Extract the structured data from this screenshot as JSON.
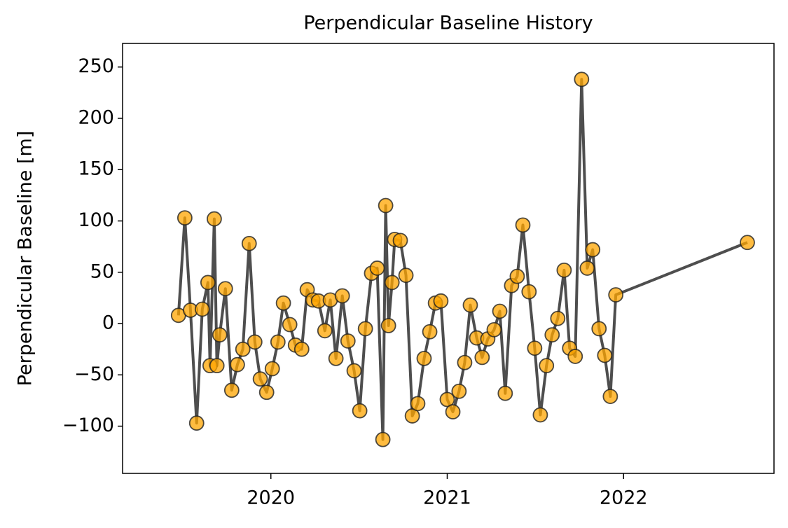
{
  "chart_data": {
    "type": "line",
    "title": "Perpendicular Baseline History",
    "ylabel": "Perpendicular Baseline [m]",
    "x": [
      2019.476,
      2019.512,
      2019.544,
      2019.579,
      2019.611,
      2019.643,
      2019.655,
      2019.679,
      2019.694,
      2019.71,
      2019.742,
      2019.778,
      2019.81,
      2019.841,
      2019.877,
      2019.909,
      2019.94,
      2019.976,
      2020.008,
      2020.04,
      2020.071,
      2020.107,
      2020.139,
      2020.175,
      2020.206,
      2020.238,
      2020.27,
      2020.306,
      2020.337,
      2020.369,
      2020.405,
      2020.437,
      2020.472,
      2020.504,
      2020.536,
      2020.571,
      2020.603,
      2020.635,
      2020.651,
      2020.667,
      2020.687,
      2020.702,
      2020.734,
      2020.766,
      2020.802,
      2020.833,
      2020.869,
      2020.901,
      2020.933,
      2020.964,
      2021.0,
      2021.032,
      2021.067,
      2021.099,
      2021.131,
      2021.167,
      2021.198,
      2021.23,
      2021.266,
      2021.298,
      2021.329,
      2021.365,
      2021.397,
      2021.429,
      2021.464,
      2021.496,
      2021.528,
      2021.563,
      2021.595,
      2021.627,
      2021.663,
      2021.694,
      2021.726,
      2021.762,
      2021.794,
      2021.825,
      2021.861,
      2021.893,
      2021.925,
      2021.956,
      2022.702
    ],
    "series": [
      {
        "color": "#444444",
        "marker_color": "#ffa500",
        "values": [
          8,
          103,
          13,
          -97,
          14,
          40,
          -41,
          102,
          -41,
          -11,
          34,
          -65,
          -40,
          -25,
          78,
          -18,
          -54,
          -67,
          -44,
          -18,
          20,
          -1,
          -21,
          -25,
          33,
          23,
          22,
          -7,
          23,
          -34,
          27,
          -17,
          -46,
          -85,
          -5,
          49,
          54,
          -113,
          115,
          -2,
          40,
          82,
          81,
          47,
          -90,
          -78,
          -34,
          -8,
          20,
          22,
          -74,
          -86,
          -66,
          -38,
          18,
          -14,
          -33,
          -15,
          -6,
          12,
          -68,
          37,
          46,
          96,
          31,
          -24,
          -89,
          -41,
          -11,
          5,
          52,
          -24,
          -32,
          238,
          54,
          72,
          -5,
          -31,
          -71,
          28,
          79
        ]
      }
    ],
    "xlim": [
      2019.159,
      2022.853
    ],
    "xticks": [
      2020,
      2021,
      2022
    ],
    "ylim": [
      -146,
      273
    ],
    "yticks": [
      {
        "value": -100,
        "label": "−100"
      },
      {
        "value": -50,
        "label": "−50"
      },
      0,
      50,
      100,
      150,
      200,
      250
    ]
  }
}
